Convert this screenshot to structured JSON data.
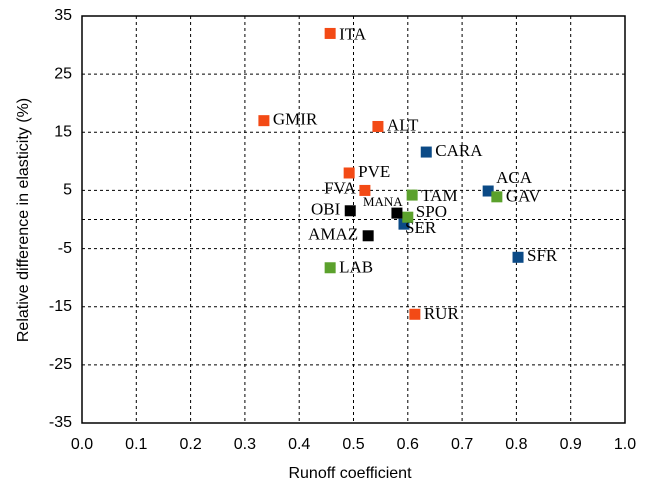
{
  "chart_data": {
    "type": "scatter",
    "xlabel": "Runoff coefficient",
    "ylabel": "Relative difference in elasticity (%)",
    "xlim": [
      0,
      1
    ],
    "ylim": [
      -35,
      35
    ],
    "xticks": [
      {
        "value": 0,
        "label": "0.0"
      },
      0.1,
      0.2,
      0.3,
      0.4,
      0.5,
      0.6,
      0.7,
      0.8,
      0.9,
      {
        "value": 1,
        "label": "1.0"
      }
    ],
    "yticks": [
      35,
      25,
      15,
      5,
      -5,
      -15,
      -25,
      -35
    ],
    "grid": true,
    "reference_line": 0,
    "points": [
      {
        "label": "ITA",
        "x": 0.457,
        "y": 32,
        "color": "#f34a15"
      },
      {
        "label": "GMIR",
        "x": 0.335,
        "y": 17,
        "color": "#f34a15"
      },
      {
        "label": "ALT",
        "x": 0.545,
        "y": 16,
        "color": "#f34a15"
      },
      {
        "label": "PVE",
        "x": 0.492,
        "y": 8,
        "color": "#f34a15"
      },
      {
        "label": "FVA",
        "x": 0.521,
        "y": 5,
        "color": "#f34a15"
      },
      {
        "label": "RUR",
        "x": 0.613,
        "y": -16.3,
        "color": "#f34a15"
      },
      {
        "label": "CARA",
        "x": 0.634,
        "y": 11.6,
        "color": "#0b4a86"
      },
      {
        "label": "ACA",
        "x": 0.748,
        "y": 4.9,
        "color": "#0b4a86"
      },
      {
        "label": "SER",
        "x": 0.593,
        "y": -0.8,
        "color": "#0b4a86"
      },
      {
        "label": "SFR",
        "x": 0.803,
        "y": -6.5,
        "color": "#0b4a86"
      },
      {
        "label": "TAM",
        "x": 0.608,
        "y": 4.2,
        "color": "#5ba12c"
      },
      {
        "label": "GAV",
        "x": 0.764,
        "y": 3.9,
        "color": "#5ba12c"
      },
      {
        "label": "SPO",
        "x": 0.6,
        "y": 0.4,
        "color": "#5ba12c"
      },
      {
        "label": "LAB",
        "x": 0.457,
        "y": -8.3,
        "color": "#5ba12c"
      },
      {
        "label": "OBI",
        "x": 0.494,
        "y": 1.5,
        "color": "#000000"
      },
      {
        "label": "MANA",
        "x": 0.58,
        "y": 1.1,
        "color": "#000000"
      },
      {
        "label": "AMAZ",
        "x": 0.527,
        "y": -2.8,
        "color": "#000000"
      }
    ]
  }
}
